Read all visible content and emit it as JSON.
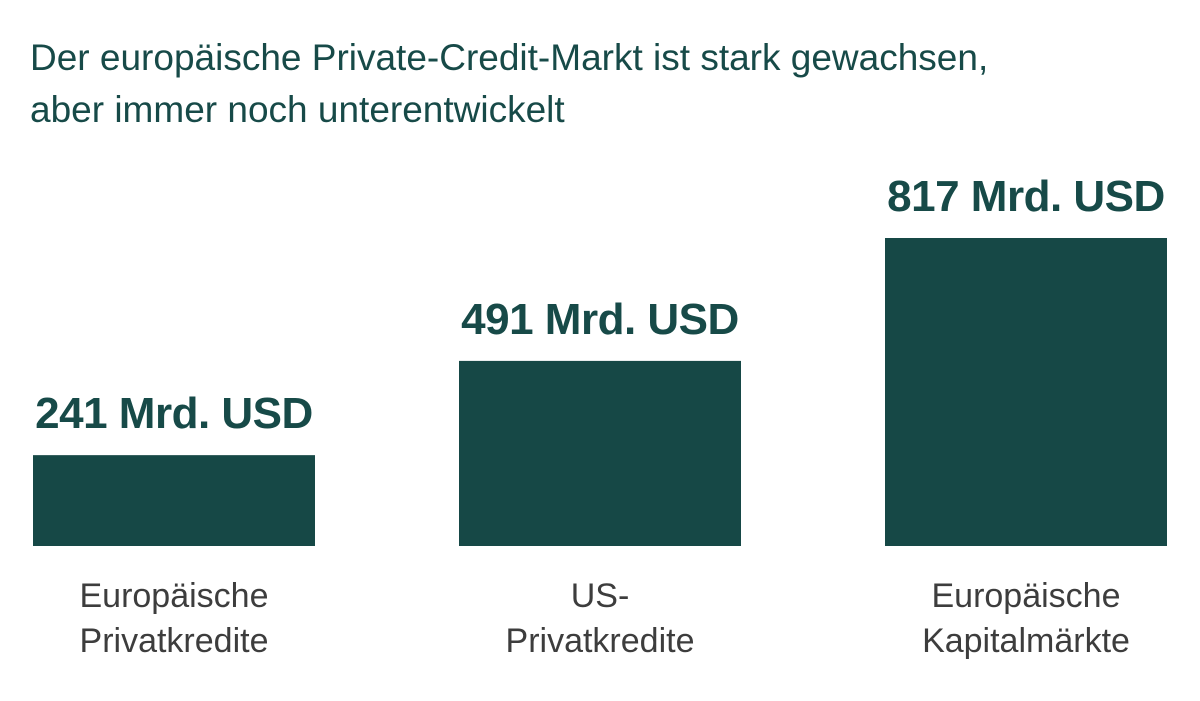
{
  "chart_data": {
    "type": "bar",
    "title": [
      "Der europäische Private-Credit-Markt ist stark gewachsen,",
      "aber immer noch unterentwickelt"
    ],
    "categories": [
      [
        "Europäische",
        "Privatkredite"
      ],
      [
        "US-",
        "Privatkredite"
      ],
      [
        "Europäische",
        "Kapitalmärkte"
      ]
    ],
    "values": [
      241,
      491,
      817
    ],
    "value_labels": [
      "241 Mrd. USD",
      "491 Mrd. USD",
      "817 Mrd. USD"
    ],
    "unit": "Mrd. USD",
    "bar_color": "#164846",
    "text_color": "#174a48",
    "category_color": "#3d3d3d",
    "grid": false,
    "legend": "none"
  }
}
